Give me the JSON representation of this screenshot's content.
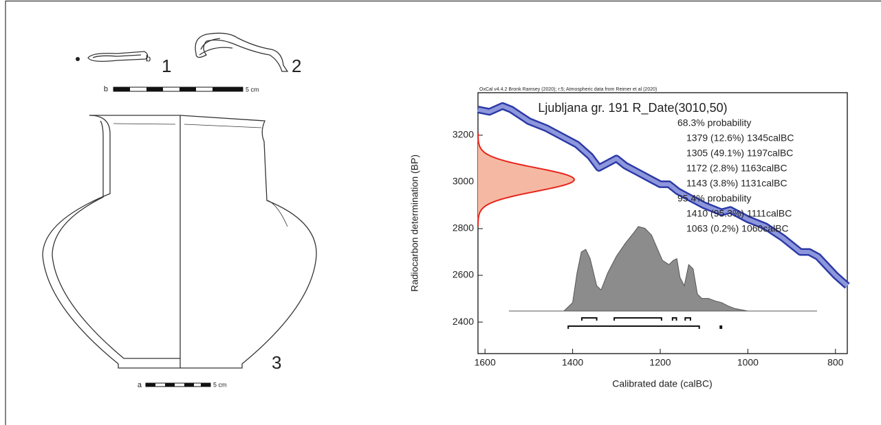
{
  "drawing": {
    "labels": [
      "1",
      "2",
      "3"
    ],
    "scale_b": {
      "letter": "b",
      "text": "5 cm"
    },
    "scale_a": {
      "letter": "a",
      "text": "5 cm"
    }
  },
  "chart_data": {
    "type": "calibration",
    "header": "OxCal v4.4.2 Bronk Ramsey (2020); r:5; Atmospheric data from Reimer et al (2020)",
    "title": "Ljubljana gr. 191 R_Date(3010,50)",
    "x_label": "Calibrated date (calBC)",
    "y_label": "Radiocarbon determination (BP)",
    "xlim": [
      1616,
      773
    ],
    "xticks": [
      1600,
      1400,
      1200,
      1000,
      800
    ],
    "ylim": [
      2265,
      3382
    ],
    "yticks": [
      2400,
      2600,
      2800,
      3000,
      3200
    ],
    "r_date": {
      "mean": 3010,
      "sigma": 50,
      "color": "#e8231a",
      "fill": "#f5b9a3"
    },
    "curve": {
      "color": "#2b3aa6",
      "x": [
        1616,
        1590,
        1560,
        1540,
        1500,
        1460,
        1420,
        1390,
        1360,
        1340,
        1320,
        1300,
        1280,
        1250,
        1220,
        1200,
        1180,
        1160,
        1130,
        1100,
        1060,
        1040,
        1000,
        960,
        920,
        880,
        860,
        840,
        800,
        773
      ],
      "values": [
        3310,
        3300,
        3325,
        3310,
        3260,
        3230,
        3190,
        3160,
        3110,
        3060,
        3080,
        3100,
        3070,
        3040,
        3010,
        2990,
        2990,
        2960,
        2930,
        2900,
        2870,
        2880,
        2840,
        2810,
        2760,
        2700,
        2700,
        2680,
        2600,
        2555
      ]
    },
    "posterior": {
      "color": "#8c8c8c",
      "x": [
        1420,
        1400,
        1390,
        1380,
        1370,
        1360,
        1345,
        1335,
        1320,
        1300,
        1280,
        1260,
        1250,
        1235,
        1220,
        1205,
        1195,
        1180,
        1170,
        1162,
        1155,
        1145,
        1135,
        1125,
        1115,
        1105,
        1090,
        1075,
        1060,
        1045,
        1030,
        1000
      ],
      "values": [
        0,
        0.1,
        0.45,
        0.7,
        0.73,
        0.62,
        0.3,
        0.25,
        0.45,
        0.65,
        0.8,
        0.93,
        1.0,
        0.98,
        0.9,
        0.72,
        0.6,
        0.55,
        0.6,
        0.62,
        0.4,
        0.3,
        0.55,
        0.5,
        0.2,
        0.15,
        0.15,
        0.12,
        0.1,
        0.06,
        0.03,
        0
      ]
    },
    "ranges": [
      {
        "label": "68.3% probability",
        "intervals": [
          {
            "from": 1379,
            "to": 1345,
            "label": "1379 (12.6%) 1345calBC"
          },
          {
            "from": 1305,
            "to": 1197,
            "label": "1305 (49.1%) 1197calBC"
          },
          {
            "from": 1172,
            "to": 1163,
            "label": "1172 (2.8%) 1163calBC"
          },
          {
            "from": 1143,
            "to": 1131,
            "label": "1143 (3.8%) 1131calBC"
          }
        ]
      },
      {
        "label": "95.4% probability",
        "intervals": [
          {
            "from": 1410,
            "to": 1111,
            "label": "1410 (95.3%) 1111calBC"
          },
          {
            "from": 1063,
            "to": 1060,
            "label": "1063 (0.2%) 1060calBC"
          }
        ]
      }
    ]
  }
}
